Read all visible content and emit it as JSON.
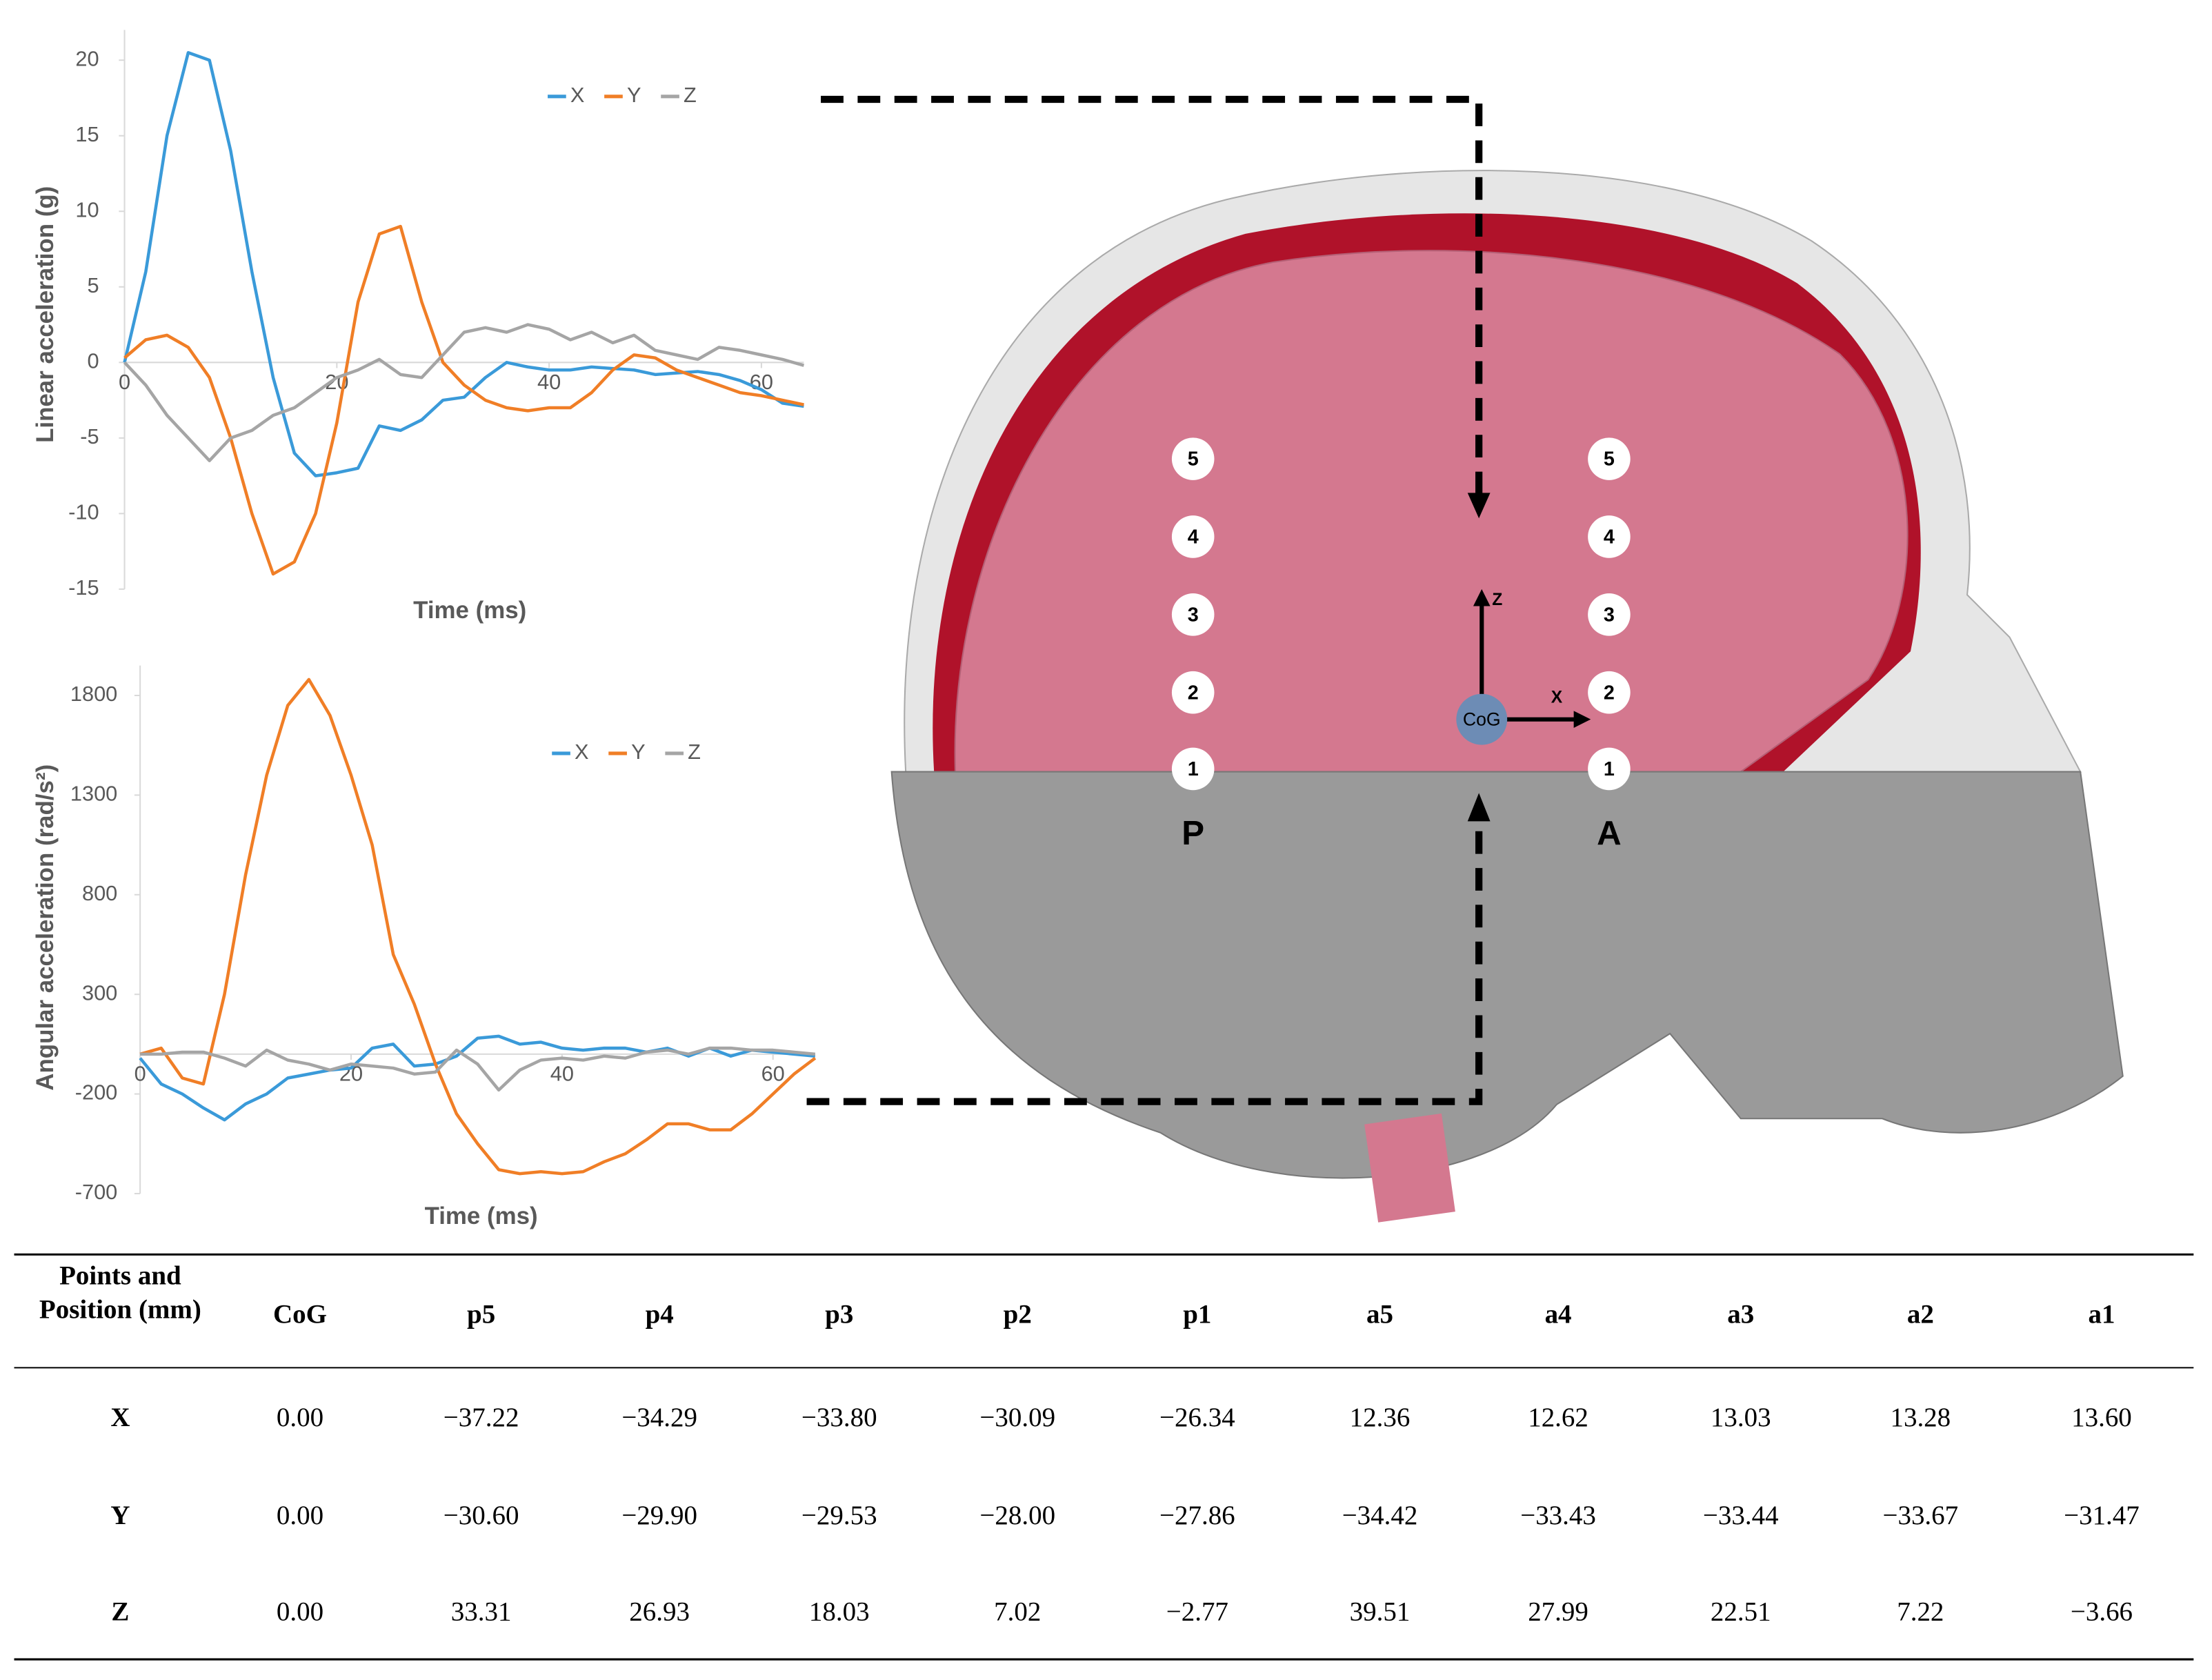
{
  "chart_data": [
    {
      "type": "line",
      "y_label": "Linear acceleration  (g)",
      "x_label": "Time (ms)",
      "x": [
        0,
        2,
        4,
        6,
        8,
        10,
        12,
        14,
        16,
        18,
        20,
        22,
        24,
        26,
        28,
        30,
        32,
        34,
        36,
        38,
        40,
        42,
        44,
        46,
        48,
        50,
        52,
        54,
        56,
        58,
        60,
        62,
        64
      ],
      "series": [
        {
          "name": "X",
          "color": "#3a9ad9",
          "values": [
            0,
            6,
            15,
            20.5,
            20,
            14,
            6,
            -1,
            -6,
            -7.5,
            -7.3,
            -7,
            -4.2,
            -4.5,
            -3.8,
            -2.5,
            -2.3,
            -1,
            0,
            -0.3,
            -0.5,
            -0.5,
            -0.3,
            -0.4,
            -0.5,
            -0.8,
            -0.7,
            -0.6,
            -0.8,
            -1.2,
            -1.8,
            -2.7,
            -2.9
          ]
        },
        {
          "name": "Y",
          "color": "#f07e26",
          "values": [
            0.3,
            1.5,
            1.8,
            1,
            -1,
            -5,
            -10,
            -14,
            -13.2,
            -10,
            -4,
            4,
            8.5,
            9,
            4,
            0,
            -1.5,
            -2.5,
            -3,
            -3.2,
            -3,
            -3,
            -2,
            -0.5,
            0.5,
            0.3,
            -0.5,
            -1,
            -1.5,
            -2,
            -2.2,
            -2.5,
            -2.8
          ]
        },
        {
          "name": "Z",
          "color": "#a5a5a5",
          "values": [
            0,
            -1.5,
            -3.5,
            -5,
            -6.5,
            -5,
            -4.5,
            -3.5,
            -3,
            -2,
            -1,
            -0.5,
            0.2,
            -0.8,
            -1,
            0.5,
            2,
            2.3,
            2,
            2.5,
            2.2,
            1.5,
            2,
            1.3,
            1.8,
            0.8,
            0.5,
            0.2,
            1,
            0.8,
            0.5,
            0.2,
            -0.2
          ]
        }
      ],
      "xlim": [
        0,
        64
      ],
      "xticks": [
        0,
        20,
        40,
        60
      ],
      "ylim": [
        -15,
        22
      ],
      "yticks": [
        -15,
        -10,
        -5,
        0,
        5,
        10,
        15,
        20
      ],
      "grid": false,
      "legend": "top-right"
    },
    {
      "type": "line",
      "y_label": "Angular acceleration (rad/s²)",
      "x_label": "Time (ms)",
      "x": [
        0,
        2,
        4,
        6,
        8,
        10,
        12,
        14,
        16,
        18,
        20,
        22,
        24,
        26,
        28,
        30,
        32,
        34,
        36,
        38,
        40,
        42,
        44,
        46,
        48,
        50,
        52,
        54,
        56,
        58,
        60,
        62,
        64
      ],
      "series": [
        {
          "name": "X",
          "color": "#3a9ad9",
          "values": [
            -20,
            -150,
            -200,
            -270,
            -330,
            -250,
            -200,
            -120,
            -100,
            -80,
            -70,
            30,
            50,
            -60,
            -50,
            -10,
            80,
            90,
            50,
            60,
            30,
            20,
            30,
            30,
            10,
            30,
            -10,
            30,
            -10,
            20,
            10,
            0,
            -10
          ]
        },
        {
          "name": "Y",
          "color": "#f07e26",
          "values": [
            0,
            30,
            -120,
            -150,
            300,
            900,
            1400,
            1750,
            1880,
            1700,
            1400,
            1050,
            500,
            250,
            -50,
            -300,
            -450,
            -580,
            -600,
            -590,
            -600,
            -590,
            -540,
            -500,
            -430,
            -350,
            -350,
            -380,
            -380,
            -300,
            -200,
            -100,
            -20
          ]
        },
        {
          "name": "Z",
          "color": "#a5a5a5",
          "values": [
            0,
            0,
            10,
            10,
            -20,
            -60,
            20,
            -30,
            -50,
            -80,
            -50,
            -60,
            -70,
            -100,
            -90,
            20,
            -50,
            -180,
            -80,
            -30,
            -20,
            -30,
            -10,
            -20,
            10,
            20,
            0,
            30,
            30,
            20,
            20,
            10,
            0
          ]
        }
      ],
      "xlim": [
        0,
        64
      ],
      "xticks": [
        0,
        20,
        40,
        60
      ],
      "ylim": [
        -700,
        1950
      ],
      "yticks": [
        -700,
        -200,
        300,
        800,
        1300,
        1800
      ],
      "grid": false,
      "legend": "top-right"
    }
  ],
  "diagram": {
    "posterior_points": [
      "5",
      "4",
      "3",
      "2",
      "1"
    ],
    "anterior_points": [
      "5",
      "4",
      "3",
      "2",
      "1"
    ],
    "posterior_label": "P",
    "anterior_label": "A",
    "cog_label": "CoG",
    "x_axis_label": "X",
    "z_axis_label": "Z"
  },
  "table": {
    "header": [
      "Points and Position (mm)",
      "CoG",
      "p5",
      "p4",
      "p3",
      "p2",
      "p1",
      "a5",
      "a4",
      "a3",
      "a2",
      "a1"
    ],
    "rows": [
      [
        "X",
        "0.00",
        "−37.22",
        "−34.29",
        "−33.80",
        "−30.09",
        "−26.34",
        "12.36",
        "12.62",
        "13.03",
        "13.28",
        "13.60"
      ],
      [
        "Y",
        "0.00",
        "−30.60",
        "−29.90",
        "−29.53",
        "−28.00",
        "−27.86",
        "−34.42",
        "−33.43",
        "−33.44",
        "−33.67",
        "−31.47"
      ],
      [
        "Z",
        "0.00",
        "33.31",
        "26.93",
        "18.03",
        "7.02",
        "−2.77",
        "39.51",
        "27.99",
        "22.51",
        "7.22",
        "−3.66"
      ]
    ]
  }
}
